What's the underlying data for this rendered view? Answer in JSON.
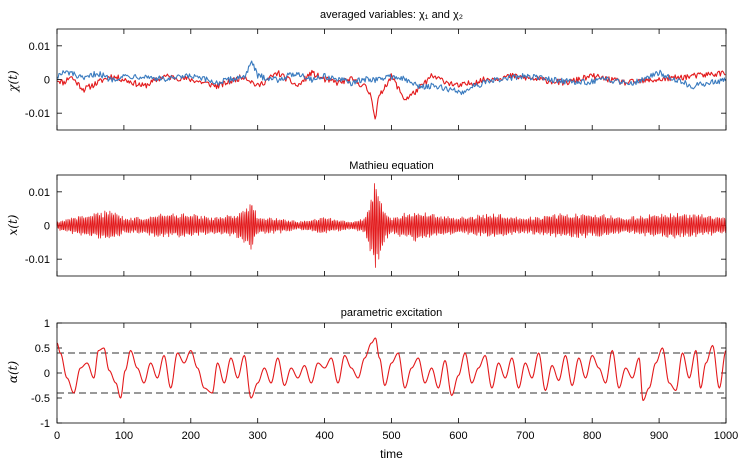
{
  "xlabel": "time",
  "colors": {
    "red": "#e31a1c",
    "blue": "#3a7bbf"
  },
  "chart_data": [
    {
      "type": "line",
      "title": "averaged variables: χ₁ and χ₂",
      "ylabel": "χ(t)",
      "xlim": [
        0,
        1000
      ],
      "ylim": [
        -0.015,
        0.015
      ],
      "yticks": [
        -0.01,
        0,
        0.01
      ],
      "yticklabels": [
        "-0.01",
        "0",
        "0.01"
      ],
      "xticks": [
        0,
        100,
        200,
        300,
        400,
        500,
        600,
        700,
        800,
        900,
        1000
      ],
      "series": [
        {
          "color": "#e31a1c",
          "note": "noisy, small amplitude; dip to -0.012 near t=476",
          "x": [
            0,
            10,
            20,
            40,
            60,
            80,
            100,
            130,
            160,
            200,
            240,
            280,
            300,
            330,
            360,
            380,
            400,
            420,
            440,
            460,
            470,
            476,
            480,
            490,
            500,
            520,
            540,
            560,
            600,
            640,
            680,
            720,
            760,
            800,
            850,
            900,
            950,
            1000
          ],
          "y": [
            0,
            -0.001,
            0.001,
            -0.003,
            -0.001,
            0.001,
            0,
            -0.002,
            0.001,
            0,
            -0.002,
            0.001,
            -0.002,
            0.002,
            -0.002,
            0.002,
            0,
            -0.001,
            0,
            -0.002,
            -0.005,
            -0.012,
            -0.006,
            -0.002,
            0.001,
            -0.006,
            -0.003,
            0.001,
            -0.002,
            0,
            0.001,
            0,
            -0.001,
            0.001,
            -0.001,
            0,
            0.001,
            0.002
          ]
        },
        {
          "color": "#3a7bbf",
          "note": "noisy, small amplitude; peak ~0.005 near t=292, dip ~-0.004 near t=605",
          "x": [
            0,
            10,
            20,
            40,
            60,
            80,
            100,
            130,
            160,
            200,
            240,
            280,
            292,
            300,
            330,
            360,
            380,
            400,
            420,
            440,
            460,
            480,
            500,
            520,
            540,
            560,
            590,
            605,
            620,
            660,
            700,
            740,
            780,
            820,
            860,
            900,
            950,
            1000
          ],
          "y": [
            0.001,
            0.002,
            0.002,
            0,
            0.002,
            0,
            0.001,
            0.001,
            0,
            0.001,
            -0.001,
            0.001,
            0.005,
            0.001,
            0,
            0.002,
            0,
            0.001,
            0,
            -0.001,
            0,
            0,
            0.001,
            0,
            -0.002,
            -0.002,
            -0.003,
            -0.004,
            -0.002,
            0,
            0.001,
            0,
            -0.001,
            0,
            -0.001,
            0.002,
            -0.002,
            0
          ]
        }
      ]
    },
    {
      "type": "line",
      "title": "Mathieu equation",
      "ylabel": "x(t)",
      "xlim": [
        0,
        1000
      ],
      "ylim": [
        -0.015,
        0.015
      ],
      "yticks": [
        -0.01,
        0,
        0.01
      ],
      "yticklabels": [
        "-0.01",
        "0",
        "0.01"
      ],
      "xticks": [
        0,
        100,
        200,
        300,
        400,
        500,
        600,
        700,
        800,
        900,
        1000
      ],
      "series": [
        {
          "color": "#e31a1c",
          "note": "fast oscillation; envelope amplitude vs time",
          "envelope_x": [
            0,
            20,
            50,
            80,
            100,
            130,
            150,
            200,
            230,
            270,
            285,
            292,
            300,
            330,
            360,
            400,
            440,
            460,
            470,
            476,
            480,
            490,
            500,
            520,
            540,
            560,
            600,
            650,
            700,
            750,
            800,
            850,
            900,
            950,
            1000
          ],
          "envelope_y": [
            0.001,
            0.002,
            0.003,
            0.004,
            0.002,
            0.002,
            0.003,
            0.003,
            0.002,
            0.003,
            0.005,
            0.006,
            0.002,
            0.002,
            0.001,
            0.002,
            0.001,
            0.002,
            0.008,
            0.013,
            0.009,
            0.004,
            0.002,
            0.003,
            0.004,
            0.003,
            0.002,
            0.003,
            0.002,
            0.003,
            0.003,
            0.002,
            0.003,
            0.003,
            0.002
          ]
        }
      ]
    },
    {
      "type": "line",
      "title": "parametric excitation",
      "ylabel": "α(t)",
      "xlim": [
        0,
        1000
      ],
      "ylim": [
        -1,
        1
      ],
      "yticks": [
        -1,
        -0.5,
        0,
        0.5,
        1
      ],
      "yticklabels": [
        "-1",
        "-0.5",
        "0",
        "0.5",
        "1"
      ],
      "xticks": [
        0,
        100,
        200,
        300,
        400,
        500,
        600,
        700,
        800,
        900,
        1000
      ],
      "xticklabels": [
        "0",
        "100",
        "200",
        "300",
        "400",
        "500",
        "600",
        "700",
        "800",
        "900",
        "1000"
      ],
      "hlines": [
        0.4,
        -0.4
      ],
      "series": [
        {
          "color": "#e31a1c",
          "x": [
            0,
            5,
            15,
            25,
            35,
            45,
            55,
            62,
            70,
            78,
            88,
            95,
            102,
            110,
            120,
            130,
            140,
            150,
            160,
            170,
            180,
            190,
            200,
            210,
            220,
            232,
            240,
            250,
            260,
            270,
            280,
            290,
            300,
            310,
            320,
            330,
            340,
            350,
            360,
            370,
            380,
            390,
            400,
            410,
            420,
            430,
            440,
            450,
            460,
            470,
            476,
            482,
            490,
            500,
            510,
            520,
            530,
            540,
            550,
            560,
            570,
            580,
            590,
            600,
            610,
            620,
            630,
            640,
            650,
            660,
            670,
            680,
            690,
            700,
            710,
            720,
            730,
            740,
            750,
            760,
            770,
            780,
            790,
            800,
            810,
            820,
            830,
            840,
            850,
            860,
            870,
            876,
            885,
            895,
            905,
            915,
            925,
            935,
            945,
            955,
            962,
            970,
            980,
            990,
            1000
          ],
          "y": [
            0.6,
            0.4,
            -0.1,
            -0.4,
            0.1,
            0.2,
            -0.1,
            0.45,
            0.5,
            0.05,
            -0.2,
            -0.5,
            0.05,
            0.45,
            0.1,
            -0.2,
            0.2,
            -0.1,
            0.35,
            -0.3,
            0.4,
            0.2,
            0.45,
            0.1,
            -0.3,
            -0.4,
            0.2,
            -0.2,
            0.3,
            -0.1,
            0.35,
            -0.5,
            -0.2,
            0.1,
            -0.2,
            0.3,
            -0.25,
            0.1,
            -0.1,
            0.15,
            -0.2,
            0.2,
            0.1,
            0.3,
            -0.2,
            0.35,
            0.1,
            -0.1,
            0.3,
            0.6,
            0.7,
            0.3,
            -0.25,
            0.2,
            0.4,
            -0.3,
            0.1,
            0.3,
            -0.2,
            0.1,
            -0.3,
            0.25,
            -0.45,
            -0.05,
            0.4,
            -0.2,
            0.1,
            0.35,
            -0.3,
            0.2,
            -0.1,
            0.3,
            -0.3,
            0.2,
            -0.1,
            0.4,
            -0.35,
            0.15,
            -0.15,
            0.35,
            -0.25,
            0.3,
            -0.1,
            0.35,
            0.1,
            -0.2,
            0.45,
            -0.3,
            0.1,
            -0.1,
            0.3,
            -0.55,
            -0.3,
            0.2,
            0.5,
            -0.2,
            -0.35,
            0.4,
            -0.1,
            0.45,
            -0.3,
            0.2,
            0.55,
            -0.3,
            0.45
          ]
        }
      ]
    }
  ]
}
